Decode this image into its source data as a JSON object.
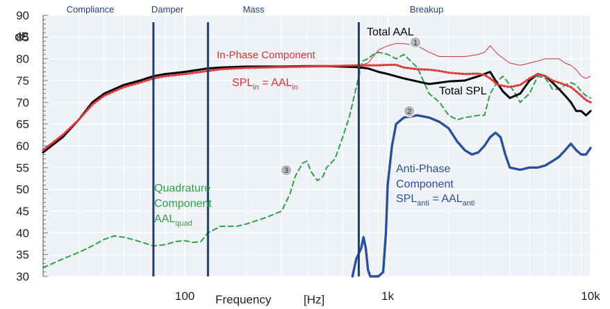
{
  "chart_data": {
    "type": "line",
    "xscale": "log",
    "xlim": [
      20,
      10000
    ],
    "ylim": [
      30,
      90
    ],
    "yticks": [
      30,
      35,
      40,
      45,
      50,
      55,
      60,
      65,
      70,
      75,
      80,
      85,
      90
    ],
    "xticks": [
      {
        "value": 100,
        "label": "100"
      },
      {
        "value": 1000,
        "label": "1k"
      },
      {
        "value": 10000,
        "label": "10k"
      }
    ],
    "xlabel": "Frequency",
    "xunit": "[Hz]",
    "ylabel": "dB",
    "grid": true,
    "colors": {
      "background": "#eef2f7",
      "grid": "#ffffff",
      "divider": "#1f3d66",
      "in_phase": "#e03a3a",
      "total_aal": "#c83232",
      "total_spl": "#000000",
      "quadrature": "#2e9e48",
      "anti_phase": "#2c4f9a",
      "region_label": "#1f3d7a"
    },
    "regions": [
      {
        "label": "Compliance"
      },
      {
        "label": "Damper"
      },
      {
        "label": "Mass"
      },
      {
        "label": "Breakup"
      }
    ],
    "dividers": [
      70,
      130,
      720
    ],
    "series": [
      {
        "name": "Total SPL",
        "points": [
          [
            20,
            58.5
          ],
          [
            25,
            62
          ],
          [
            30,
            66
          ],
          [
            35,
            70
          ],
          [
            40,
            72
          ],
          [
            50,
            74
          ],
          [
            60,
            75
          ],
          [
            70,
            76
          ],
          [
            80,
            76.5
          ],
          [
            100,
            77
          ],
          [
            130,
            77.8
          ],
          [
            150,
            78
          ],
          [
            200,
            78.2
          ],
          [
            300,
            78.2
          ],
          [
            400,
            78.3
          ],
          [
            500,
            78.3
          ],
          [
            700,
            78.1
          ],
          [
            800,
            77.8
          ],
          [
            900,
            77
          ],
          [
            1000,
            76.5
          ],
          [
            1200,
            75.5
          ],
          [
            1400,
            74.8
          ],
          [
            1600,
            74.2
          ],
          [
            1800,
            74.5
          ],
          [
            2000,
            74.8
          ],
          [
            2400,
            75
          ],
          [
            2800,
            76
          ],
          [
            3000,
            76.5
          ],
          [
            3200,
            77
          ],
          [
            3400,
            75
          ],
          [
            3700,
            72.5
          ],
          [
            4000,
            71
          ],
          [
            4500,
            72
          ],
          [
            5000,
            75
          ],
          [
            5500,
            76.5
          ],
          [
            6000,
            76
          ],
          [
            6500,
            74.5
          ],
          [
            7000,
            73
          ],
          [
            7500,
            71.5
          ],
          [
            8000,
            70
          ],
          [
            8500,
            68
          ],
          [
            9000,
            68
          ],
          [
            9500,
            67
          ],
          [
            10000,
            68
          ]
        ]
      },
      {
        "name": "In-Phase Component",
        "points": [
          [
            20,
            59
          ],
          [
            25,
            62.5
          ],
          [
            30,
            66
          ],
          [
            35,
            69.5
          ],
          [
            40,
            71.5
          ],
          [
            50,
            73.5
          ],
          [
            60,
            74.5
          ],
          [
            70,
            75.5
          ],
          [
            80,
            76
          ],
          [
            100,
            76.5
          ],
          [
            130,
            77.2
          ],
          [
            150,
            77.6
          ],
          [
            200,
            77.9
          ],
          [
            300,
            78.1
          ],
          [
            400,
            78.2
          ],
          [
            500,
            78.3
          ],
          [
            700,
            78.5
          ],
          [
            800,
            78.5
          ],
          [
            900,
            78.5
          ],
          [
            1000,
            78.6
          ],
          [
            1100,
            78.6
          ],
          [
            1200,
            78
          ],
          [
            1400,
            77.6
          ],
          [
            1600,
            77.5
          ],
          [
            1800,
            77.2
          ],
          [
            2000,
            76.8
          ],
          [
            2400,
            76.5
          ],
          [
            2800,
            76.6
          ],
          [
            3000,
            76.3
          ],
          [
            3200,
            75.5
          ],
          [
            3500,
            74
          ],
          [
            4000,
            73.5
          ],
          [
            4500,
            74
          ],
          [
            5000,
            75.5
          ],
          [
            5500,
            76.5
          ],
          [
            6000,
            76
          ],
          [
            6500,
            75
          ],
          [
            7000,
            74.5
          ],
          [
            7500,
            74
          ],
          [
            8000,
            73.5
          ],
          [
            8500,
            72.5
          ],
          [
            9000,
            71.5
          ],
          [
            9500,
            70.5
          ],
          [
            10000,
            70
          ]
        ]
      },
      {
        "name": "Total AAL",
        "points": [
          [
            700,
            78.3
          ],
          [
            800,
            79
          ],
          [
            900,
            82
          ],
          [
            1000,
            83
          ],
          [
            1100,
            83.5
          ],
          [
            1200,
            83.5
          ],
          [
            1400,
            83
          ],
          [
            1600,
            81.5
          ],
          [
            1800,
            80.5
          ],
          [
            2000,
            80.5
          ],
          [
            2400,
            80.5
          ],
          [
            2800,
            81
          ],
          [
            3000,
            81.5
          ],
          [
            3200,
            83
          ],
          [
            3500,
            81
          ],
          [
            4000,
            79
          ],
          [
            4500,
            78.5
          ],
          [
            5000,
            79
          ],
          [
            5500,
            79.5
          ],
          [
            6000,
            80
          ],
          [
            6500,
            80
          ],
          [
            7000,
            80
          ],
          [
            7500,
            79
          ],
          [
            8000,
            78.5
          ],
          [
            8500,
            77.5
          ],
          [
            9000,
            76
          ],
          [
            9500,
            75.5
          ],
          [
            10000,
            76
          ]
        ]
      },
      {
        "name": "Quadrature Component",
        "points": [
          [
            20,
            32
          ],
          [
            25,
            34
          ],
          [
            30,
            35.5
          ],
          [
            35,
            37
          ],
          [
            40,
            38.5
          ],
          [
            45,
            39.3
          ],
          [
            50,
            39
          ],
          [
            55,
            38.5
          ],
          [
            60,
            38
          ],
          [
            70,
            37
          ],
          [
            80,
            37.3
          ],
          [
            90,
            38
          ],
          [
            100,
            38.2
          ],
          [
            110,
            37.8
          ],
          [
            120,
            38
          ],
          [
            130,
            40
          ],
          [
            150,
            41.5
          ],
          [
            180,
            41.5
          ],
          [
            200,
            42
          ],
          [
            250,
            43.5
          ],
          [
            300,
            45
          ],
          [
            330,
            49
          ],
          [
            350,
            53
          ],
          [
            380,
            56
          ],
          [
            400,
            56.5
          ],
          [
            420,
            54
          ],
          [
            450,
            52
          ],
          [
            480,
            53
          ],
          [
            500,
            55
          ],
          [
            550,
            57
          ],
          [
            600,
            62
          ],
          [
            650,
            67
          ],
          [
            700,
            73.5
          ],
          [
            750,
            79.5
          ],
          [
            800,
            80
          ],
          [
            850,
            81
          ],
          [
            900,
            81.5
          ],
          [
            1000,
            81
          ],
          [
            1100,
            80
          ],
          [
            1200,
            81
          ],
          [
            1400,
            78
          ],
          [
            1600,
            72
          ],
          [
            1800,
            70
          ],
          [
            2000,
            67
          ],
          [
            2200,
            66
          ],
          [
            2400,
            66.5
          ],
          [
            2800,
            67
          ],
          [
            3000,
            67
          ],
          [
            3200,
            72
          ],
          [
            3500,
            75
          ],
          [
            3700,
            76
          ],
          [
            4000,
            74
          ],
          [
            4500,
            70
          ],
          [
            5000,
            72
          ],
          [
            5500,
            76
          ],
          [
            6000,
            75.5
          ],
          [
            6500,
            73
          ],
          [
            7000,
            73
          ],
          [
            7500,
            74
          ],
          [
            8000,
            74.5
          ],
          [
            8500,
            74
          ],
          [
            9000,
            72.5
          ],
          [
            9500,
            71.5
          ],
          [
            10000,
            71
          ]
        ]
      },
      {
        "name": "Anti-Phase Component",
        "points": [
          [
            670,
            30
          ],
          [
            700,
            34
          ],
          [
            740,
            36.5
          ],
          [
            760,
            39
          ],
          [
            780,
            36.5
          ],
          [
            800,
            31.5
          ],
          [
            820,
            30
          ],
          [
            900,
            30
          ],
          [
            950,
            31
          ],
          [
            980,
            40
          ],
          [
            1000,
            51
          ],
          [
            1050,
            60
          ],
          [
            1100,
            65
          ],
          [
            1200,
            66.5
          ],
          [
            1400,
            67
          ],
          [
            1600,
            66.5
          ],
          [
            1800,
            65.5
          ],
          [
            2000,
            64
          ],
          [
            2200,
            61
          ],
          [
            2400,
            59
          ],
          [
            2600,
            58
          ],
          [
            2800,
            58.5
          ],
          [
            3000,
            60
          ],
          [
            3200,
            62
          ],
          [
            3400,
            63
          ],
          [
            3600,
            62
          ],
          [
            3800,
            58
          ],
          [
            4000,
            55
          ],
          [
            4500,
            54.5
          ],
          [
            5000,
            55
          ],
          [
            5500,
            55
          ],
          [
            6000,
            55.5
          ],
          [
            6500,
            56.5
          ],
          [
            7000,
            57.5
          ],
          [
            7500,
            59
          ],
          [
            8000,
            60.5
          ],
          [
            8500,
            59
          ],
          [
            9000,
            58
          ],
          [
            9500,
            58
          ],
          [
            10000,
            59.5
          ]
        ]
      }
    ]
  },
  "annotations": {
    "total_aal": "Total AAL",
    "in_phase": "In-Phase Component",
    "spl_in": {
      "a": "SPL",
      "a_sub": "in",
      "eq": " = AAL",
      "b_sub": "in"
    },
    "total_spl": "Total SPL",
    "quad_line1": "Quadrature",
    "quad_line2": "Component",
    "aal_quad": {
      "a": "AAL",
      "a_sub": "quad"
    },
    "anti_line1": "Anti-Phase",
    "anti_line2": "Component",
    "spl_anti": {
      "a": "SPL",
      "a_sub": "anti",
      "eq": " = AAL",
      "b_sub": "anti"
    },
    "markers": [
      "1",
      "2",
      "3"
    ]
  }
}
